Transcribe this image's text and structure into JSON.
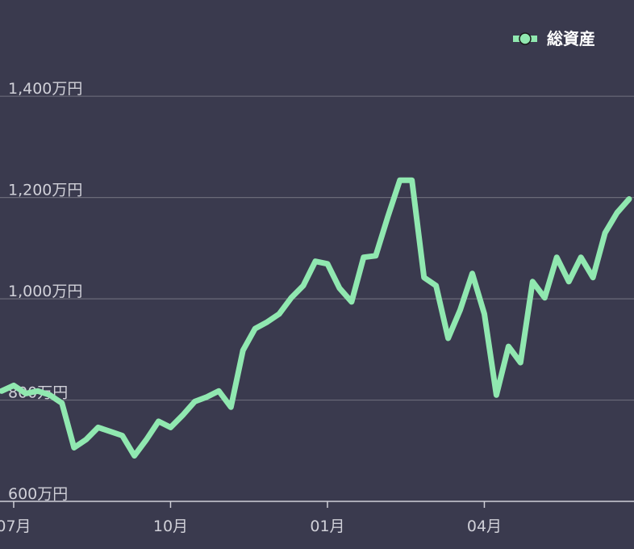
{
  "chart_data": {
    "type": "line",
    "categories": [
      null,
      "07月",
      null,
      null,
      null,
      null,
      null,
      null,
      null,
      null,
      null,
      null,
      null,
      null,
      "10月",
      null,
      null,
      null,
      null,
      null,
      null,
      null,
      null,
      null,
      null,
      null,
      null,
      "01月",
      null,
      null,
      null,
      null,
      null,
      null,
      null,
      null,
      null,
      null,
      null,
      null,
      "04月",
      null,
      null,
      null,
      null,
      null,
      null,
      null,
      null,
      null,
      null,
      null,
      null
    ],
    "series": [
      {
        "name": "総資産",
        "color": "#90e8b0",
        "values": [
          818,
          829,
          813,
          818,
          810,
          794,
          706,
          722,
          746,
          738,
          730,
          690,
          722,
          758,
          746,
          770,
          797,
          806,
          818,
          786,
          898,
          941,
          954,
          970,
          1002,
          1026,
          1074,
          1069,
          1021,
          994,
          1082,
          1085,
          1162,
          1234,
          1234,
          1042,
          1026,
          922,
          978,
          1050,
          970,
          810,
          906,
          874,
          1034,
          1002,
          1082,
          1034,
          1082,
          1042,
          1130,
          1170,
          1197
        ]
      }
    ],
    "ylim": [
      600,
      1590
    ],
    "yticks": [
      {
        "value": 600,
        "label": "600万円"
      },
      {
        "value": 800,
        "label": "800万円"
      },
      {
        "value": 1000,
        "label": "1,000万円"
      },
      {
        "value": 1200,
        "label": "1,200万円"
      },
      {
        "value": 1400,
        "label": "1,400万円"
      }
    ],
    "grid": true,
    "legend": "top-right"
  }
}
